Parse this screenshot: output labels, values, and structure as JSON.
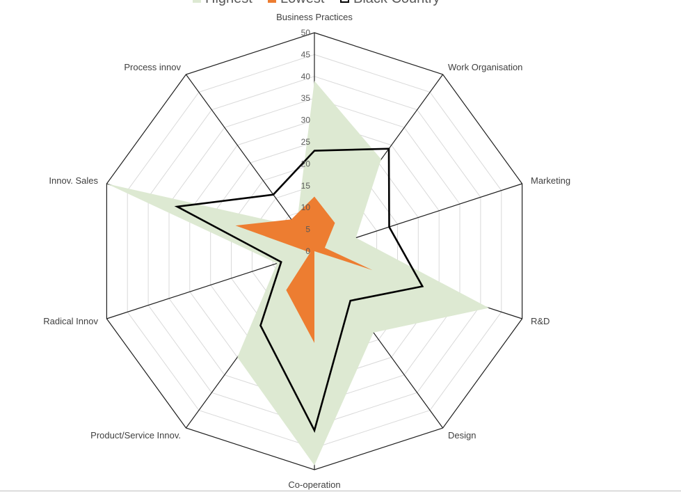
{
  "chart_data": {
    "type": "radar",
    "title": "",
    "legend_position": "top",
    "axes": [
      "Business Practices",
      "Work Organisation",
      "Marketing",
      "R&D",
      "Design",
      "Co-operation",
      "Product/Service Innov.",
      "Radical Innov",
      "Innov. Sales",
      "Process innov"
    ],
    "ticks": [
      "0",
      "5",
      "10",
      "15",
      "20",
      "25",
      "30",
      "35",
      "40",
      "45",
      "50"
    ],
    "rmax": 50,
    "series": [
      {
        "name": "Highest",
        "style": "area",
        "color": "#dde9d2",
        "values": [
          39,
          26,
          10,
          42,
          23,
          49,
          30,
          9,
          50,
          7
        ]
      },
      {
        "name": "Lowest",
        "style": "area",
        "color": "#ed7d31",
        "values": [
          12.5,
          8,
          2.5,
          14,
          0,
          21,
          11,
          1,
          19,
          9
        ]
      },
      {
        "name": "Black Country",
        "style": "line",
        "color": "#000000",
        "values": [
          23,
          29,
          18,
          26,
          14,
          41,
          21,
          8,
          33,
          16
        ]
      }
    ]
  }
}
